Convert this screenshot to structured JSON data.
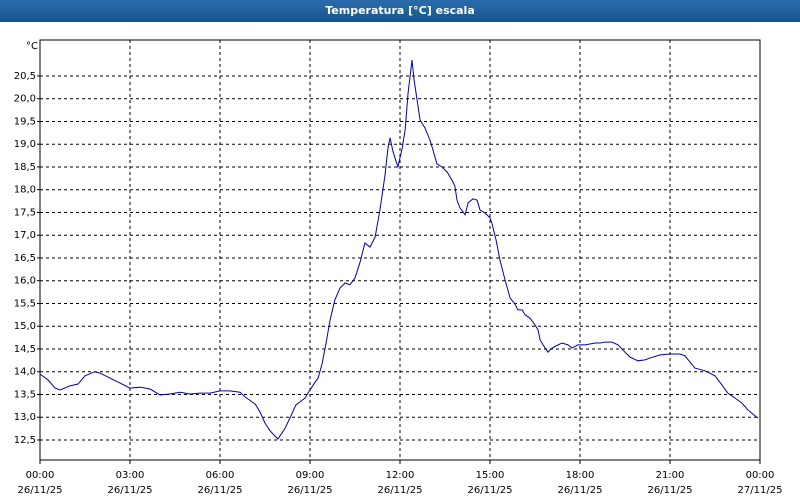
{
  "chart_data": {
    "type": "line",
    "title": "Temperatura [°C] escala",
    "ylabel": "°C",
    "color": "#0000b0",
    "grid": true,
    "xlim": [
      0,
      24
    ],
    "ylim": [
      12.06,
      21.29
    ],
    "xticks": [
      {
        "value": 0,
        "label": "00:00"
      },
      {
        "value": 3,
        "label": "03:00"
      },
      {
        "value": 6,
        "label": "06:00"
      },
      {
        "value": 9,
        "label": "09:00"
      },
      {
        "value": 12,
        "label": "12:00"
      },
      {
        "value": 15,
        "label": "15:00"
      },
      {
        "value": 18,
        "label": "18:00"
      },
      {
        "value": 21,
        "label": "21:00"
      },
      {
        "value": 24,
        "label": "00:00"
      }
    ],
    "xtick_dates": [
      "26/11/25",
      "26/11/25",
      "26/11/25",
      "26/11/25",
      "26/11/25",
      "26/11/25",
      "26/11/25",
      "26/11/25",
      "27/11/25"
    ],
    "yticks": [
      {
        "value": 12.5,
        "label": "12,5"
      },
      {
        "value": 13,
        "label": "13,0"
      },
      {
        "value": 13.5,
        "label": "13,5"
      },
      {
        "value": 14,
        "label": "14,0"
      },
      {
        "value": 14.5,
        "label": "14,5"
      },
      {
        "value": 15,
        "label": "15,0"
      },
      {
        "value": 15.5,
        "label": "15,5"
      },
      {
        "value": 16,
        "label": "16,0"
      },
      {
        "value": 16.5,
        "label": "16,5"
      },
      {
        "value": 17,
        "label": "17,0"
      },
      {
        "value": 17.5,
        "label": "17,5"
      },
      {
        "value": 18,
        "label": "18,0"
      },
      {
        "value": 18.5,
        "label": "18,5"
      },
      {
        "value": 19,
        "label": "19,0"
      },
      {
        "value": 19.5,
        "label": "19,5"
      },
      {
        "value": 20,
        "label": "20,0"
      },
      {
        "value": 20.5,
        "label": "20,5"
      }
    ],
    "x": [
      0,
      0.27,
      0.5,
      0.67,
      1.0,
      1.27,
      1.5,
      1.83,
      2.0,
      2.33,
      2.67,
      3.0,
      3.33,
      3.67,
      4.0,
      4.33,
      4.67,
      5.0,
      5.33,
      5.67,
      6.0,
      6.33,
      6.67,
      6.83,
      7.17,
      7.33,
      7.5,
      7.67,
      7.93,
      8.17,
      8.33,
      8.53,
      8.67,
      8.83,
      9.0,
      9.17,
      9.27,
      9.4,
      9.53,
      9.67,
      9.83,
      10.0,
      10.17,
      10.33,
      10.5,
      10.67,
      10.83,
      11.0,
      11.17,
      11.33,
      11.5,
      11.6,
      11.67,
      11.77,
      11.93,
      12.07,
      12.17,
      12.27,
      12.33,
      12.4,
      12.47,
      12.57,
      12.67,
      12.83,
      13.0,
      13.1,
      13.23,
      13.4,
      13.57,
      13.73,
      13.83,
      13.9,
      14.0,
      14.17,
      14.27,
      14.43,
      14.57,
      14.67,
      14.83,
      15.0,
      15.07,
      15.2,
      15.33,
      15.5,
      15.67,
      15.83,
      15.93,
      16.07,
      16.17,
      16.33,
      16.5,
      16.6,
      16.67,
      16.77,
      16.93,
      17.07,
      17.27,
      17.4,
      17.6,
      17.73,
      17.93,
      18.17,
      18.33,
      18.5,
      18.67,
      18.83,
      19.07,
      19.27,
      19.5,
      19.67,
      19.93,
      20.17,
      20.33,
      20.67,
      21.0,
      21.33,
      21.5,
      21.67,
      21.83,
      22.17,
      22.5,
      22.73,
      22.93,
      23.17,
      23.4,
      23.6,
      23.8,
      23.93
    ],
    "values": [
      13.95,
      13.82,
      13.64,
      13.6,
      13.69,
      13.73,
      13.91,
      14.0,
      13.97,
      13.86,
      13.75,
      13.64,
      13.66,
      13.62,
      13.49,
      13.51,
      13.55,
      13.51,
      13.53,
      13.53,
      13.58,
      13.58,
      13.55,
      13.45,
      13.29,
      13.12,
      12.87,
      12.7,
      12.52,
      12.76,
      12.98,
      13.27,
      13.34,
      13.42,
      13.6,
      13.77,
      13.86,
      14.17,
      14.61,
      15.14,
      15.58,
      15.84,
      15.95,
      15.91,
      16.06,
      16.41,
      16.83,
      16.74,
      16.96,
      17.55,
      18.32,
      18.92,
      19.14,
      18.83,
      18.5,
      18.9,
      19.31,
      20.13,
      20.46,
      20.85,
      20.41,
      19.97,
      19.53,
      19.36,
      19.09,
      18.87,
      18.57,
      18.5,
      18.39,
      18.21,
      18.08,
      17.77,
      17.6,
      17.45,
      17.71,
      17.8,
      17.77,
      17.55,
      17.49,
      17.38,
      17.25,
      16.9,
      16.46,
      16.02,
      15.62,
      15.49,
      15.36,
      15.36,
      15.25,
      15.18,
      15.03,
      14.92,
      14.7,
      14.59,
      14.43,
      14.52,
      14.59,
      14.63,
      14.59,
      14.52,
      14.59,
      14.59,
      14.61,
      14.63,
      14.63,
      14.65,
      14.65,
      14.59,
      14.43,
      14.32,
      14.24,
      14.26,
      14.3,
      14.37,
      14.39,
      14.39,
      14.35,
      14.21,
      14.08,
      14.02,
      13.91,
      13.71,
      13.53,
      13.42,
      13.31,
      13.16,
      13.05,
      12.98
    ]
  }
}
